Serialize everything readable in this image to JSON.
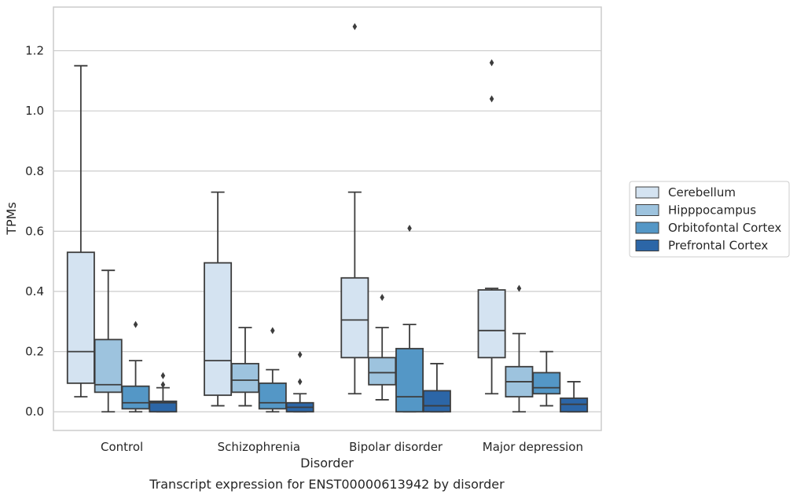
{
  "chart_data": {
    "type": "box",
    "title": "",
    "caption": "Transcript expression for ENST00000613942 by disorder",
    "xlabel": "Disorder",
    "ylabel": "TPMs",
    "ylim": [
      -0.062,
      1.345
    ],
    "yticks": [
      "0.0",
      "0.2",
      "0.4",
      "0.6",
      "0.8",
      "1.0",
      "1.2"
    ],
    "grid": true,
    "legend_position": "right",
    "categories": [
      "Control",
      "Schizophrenia",
      "Bipolar disorder",
      "Major depression"
    ],
    "series": [
      {
        "name": "Cerebellum",
        "color": "#d4e3f1",
        "boxes": [
          {
            "whisker_low": 0.05,
            "q1": 0.095,
            "median": 0.2,
            "q3": 0.53,
            "whisker_high": 1.15,
            "outliers": []
          },
          {
            "whisker_low": 0.02,
            "q1": 0.055,
            "median": 0.17,
            "q3": 0.495,
            "whisker_high": 0.73,
            "outliers": []
          },
          {
            "whisker_low": 0.06,
            "q1": 0.18,
            "median": 0.305,
            "q3": 0.445,
            "whisker_high": 0.73,
            "outliers": [
              1.28
            ]
          },
          {
            "whisker_low": 0.06,
            "q1": 0.18,
            "median": 0.27,
            "q3": 0.405,
            "whisker_high": 0.41,
            "outliers": [
              1.04,
              1.16
            ]
          }
        ]
      },
      {
        "name": "Hipppocampus",
        "color": "#9dc3de",
        "boxes": [
          {
            "whisker_low": 0.0,
            "q1": 0.065,
            "median": 0.09,
            "q3": 0.24,
            "whisker_high": 0.47,
            "outliers": []
          },
          {
            "whisker_low": 0.02,
            "q1": 0.065,
            "median": 0.105,
            "q3": 0.16,
            "whisker_high": 0.28,
            "outliers": []
          },
          {
            "whisker_low": 0.04,
            "q1": 0.09,
            "median": 0.13,
            "q3": 0.18,
            "whisker_high": 0.28,
            "outliers": [
              0.38
            ]
          },
          {
            "whisker_low": 0.0,
            "q1": 0.05,
            "median": 0.1,
            "q3": 0.15,
            "whisker_high": 0.26,
            "outliers": [
              0.41
            ]
          }
        ]
      },
      {
        "name": "Orbitofontal Cortex",
        "color": "#5497c6",
        "boxes": [
          {
            "whisker_low": 0.0,
            "q1": 0.01,
            "median": 0.03,
            "q3": 0.085,
            "whisker_high": 0.17,
            "outliers": [
              0.29
            ]
          },
          {
            "whisker_low": 0.0,
            "q1": 0.01,
            "median": 0.03,
            "q3": 0.095,
            "whisker_high": 0.14,
            "outliers": [
              0.27
            ]
          },
          {
            "whisker_low": 0.0,
            "q1": 0.0,
            "median": 0.05,
            "q3": 0.21,
            "whisker_high": 0.29,
            "outliers": [
              0.61
            ]
          },
          {
            "whisker_low": 0.02,
            "q1": 0.06,
            "median": 0.08,
            "q3": 0.13,
            "whisker_high": 0.2,
            "outliers": []
          }
        ]
      },
      {
        "name": "Prefrontal Cortex",
        "color": "#2c66a7",
        "boxes": [
          {
            "whisker_low": 0.0,
            "q1": 0.0,
            "median": 0.03,
            "q3": 0.035,
            "whisker_high": 0.08,
            "outliers": [
              0.09,
              0.12
            ]
          },
          {
            "whisker_low": 0.0,
            "q1": 0.0,
            "median": 0.015,
            "q3": 0.03,
            "whisker_high": 0.06,
            "outliers": [
              0.1,
              0.19
            ]
          },
          {
            "whisker_low": 0.0,
            "q1": 0.0,
            "median": 0.02,
            "q3": 0.07,
            "whisker_high": 0.16,
            "outliers": []
          },
          {
            "whisker_low": 0.0,
            "q1": 0.0,
            "median": 0.025,
            "q3": 0.045,
            "whisker_high": 0.1,
            "outliers": []
          }
        ]
      }
    ]
  }
}
